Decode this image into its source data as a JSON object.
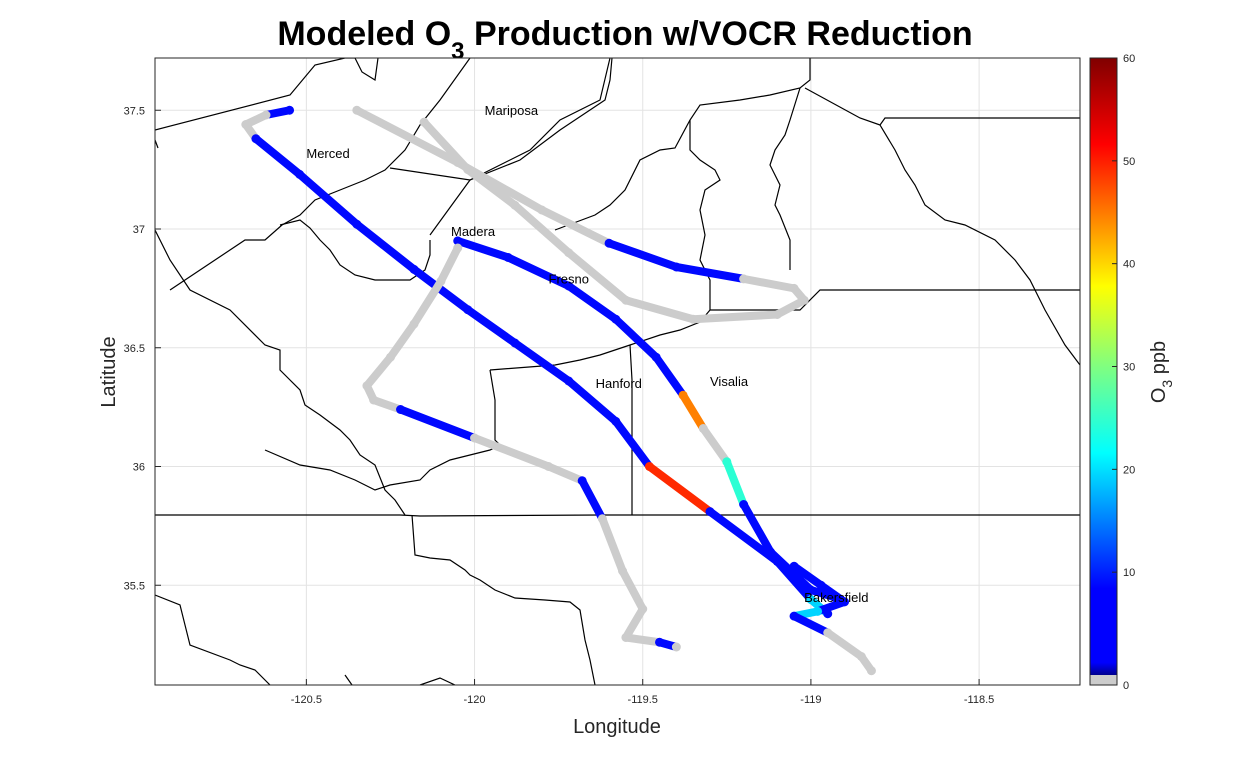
{
  "chart_data": {
    "type": "scatter",
    "title_main": "Modeled O",
    "title_sub": "3",
    "title_rest": " Production w/VOCR Reduction",
    "xlabel": "Longitude",
    "ylabel": "Latitude",
    "xlim": [
      -120.95,
      -118.2
    ],
    "ylim": [
      35.08,
      37.72
    ],
    "x_ticks": [
      -120.5,
      -120,
      -119.5,
      -119,
      -118.5
    ],
    "x_tick_labels": [
      "-120.5",
      "-120",
      "-119.5",
      "-119",
      "-118.5"
    ],
    "y_ticks": [
      35.5,
      36,
      36.5,
      37,
      37.5
    ],
    "y_tick_labels": [
      "35.5",
      "36",
      "36.5",
      "37",
      "37.5"
    ],
    "grid": true,
    "colorbar": {
      "label_main": "O",
      "label_sub": "3",
      "label_rest": " ppb",
      "range": [
        0,
        60
      ],
      "ticks": [
        0,
        10,
        20,
        30,
        40,
        50,
        60
      ],
      "tick_labels": [
        "0",
        "10",
        "20",
        "30",
        "40",
        "50",
        "60"
      ],
      "colormap": "jet",
      "zero_color": "#cccccc"
    },
    "cities": [
      {
        "name": "Mariposa",
        "lon": -119.97,
        "lat": 37.48
      },
      {
        "name": "Merced",
        "lon": -120.5,
        "lat": 37.3
      },
      {
        "name": "Madera",
        "lon": -120.07,
        "lat": 36.97
      },
      {
        "name": "Fresno",
        "lon": -119.78,
        "lat": 36.77
      },
      {
        "name": "Hanford",
        "lon": -119.64,
        "lat": 36.33
      },
      {
        "name": "Visalia",
        "lon": -119.3,
        "lat": 36.34
      },
      {
        "name": "Bakersfield",
        "lon": -119.02,
        "lat": 35.43
      }
    ],
    "flight_tracks": [
      {
        "name": "track-1",
        "points": [
          [
            -120.55,
            37.5
          ],
          [
            -120.62,
            37.48
          ],
          [
            -120.68,
            37.44
          ],
          [
            -120.65,
            37.38
          ],
          [
            -120.52,
            37.23
          ],
          [
            -120.35,
            37.02
          ],
          [
            -120.18,
            36.83
          ],
          [
            -120.02,
            36.66
          ],
          [
            -119.88,
            36.52
          ],
          [
            -119.72,
            36.36
          ],
          [
            -119.58,
            36.19
          ],
          [
            -119.48,
            36.0
          ],
          [
            -119.3,
            35.81
          ],
          [
            -119.1,
            35.6
          ],
          [
            -119.0,
            35.44
          ],
          [
            -118.95,
            35.38
          ]
        ],
        "values": [
          8,
          0,
          0,
          8,
          8,
          8,
          8,
          8,
          8,
          8,
          8,
          50,
          8,
          8,
          20,
          8
        ]
      },
      {
        "name": "track-2",
        "points": [
          [
            -120.05,
            36.95
          ],
          [
            -119.9,
            36.88
          ],
          [
            -119.72,
            36.76
          ],
          [
            -119.58,
            36.62
          ],
          [
            -119.46,
            36.46
          ],
          [
            -119.38,
            36.3
          ],
          [
            -119.32,
            36.16
          ],
          [
            -119.25,
            36.02
          ],
          [
            -119.2,
            35.84
          ],
          [
            -119.12,
            35.64
          ],
          [
            -119.0,
            35.48
          ],
          [
            -118.93,
            35.45
          ]
        ],
        "values": [
          8,
          8,
          8,
          8,
          8,
          45,
          0,
          25,
          8,
          8,
          8,
          8
        ]
      },
      {
        "name": "track-3",
        "points": [
          [
            -120.35,
            37.5
          ],
          [
            -120.05,
            37.28
          ],
          [
            -119.8,
            37.08
          ],
          [
            -119.6,
            36.94
          ],
          [
            -119.4,
            36.84
          ],
          [
            -119.2,
            36.79
          ],
          [
            -119.05,
            36.75
          ],
          [
            -119.02,
            36.7
          ],
          [
            -119.1,
            36.64
          ],
          [
            -119.35,
            36.62
          ],
          [
            -119.55,
            36.7
          ],
          [
            -119.72,
            36.9
          ],
          [
            -119.88,
            37.1
          ],
          [
            -120.02,
            37.25
          ],
          [
            -120.15,
            37.45
          ]
        ],
        "values": [
          0,
          0,
          0,
          8,
          8,
          0,
          0,
          0,
          0,
          0,
          0,
          0,
          0,
          0,
          0
        ]
      },
      {
        "name": "track-4",
        "points": [
          [
            -120.05,
            36.92
          ],
          [
            -120.1,
            36.78
          ],
          [
            -120.18,
            36.6
          ],
          [
            -120.25,
            36.46
          ],
          [
            -120.32,
            36.34
          ],
          [
            -120.3,
            36.28
          ],
          [
            -120.22,
            36.24
          ],
          [
            -120.0,
            36.12
          ],
          [
            -119.78,
            36.0
          ],
          [
            -119.68,
            35.94
          ],
          [
            -119.62,
            35.78
          ],
          [
            -119.56,
            35.56
          ],
          [
            -119.5,
            35.4
          ],
          [
            -119.55,
            35.28
          ],
          [
            -119.45,
            35.26
          ],
          [
            -119.4,
            35.24
          ]
        ],
        "values": [
          0,
          0,
          0,
          0,
          0,
          0,
          8,
          0,
          0,
          8,
          0,
          0,
          0,
          0,
          8,
          0
        ]
      },
      {
        "name": "track-5",
        "points": [
          [
            -119.05,
            35.58
          ],
          [
            -118.97,
            35.5
          ],
          [
            -118.9,
            35.43
          ],
          [
            -118.98,
            35.39
          ],
          [
            -119.05,
            35.37
          ],
          [
            -118.95,
            35.3
          ],
          [
            -118.85,
            35.2
          ],
          [
            -118.82,
            35.14
          ]
        ],
        "values": [
          8,
          8,
          8,
          20,
          8,
          0,
          0,
          0
        ]
      }
    ]
  }
}
